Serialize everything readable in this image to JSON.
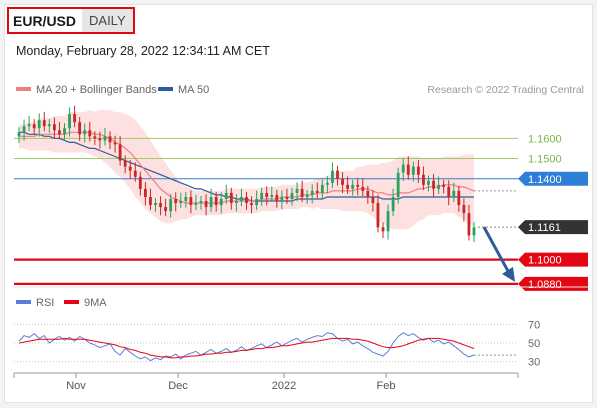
{
  "header": {
    "symbol": "EUR/USD",
    "period": "DAILY"
  },
  "timestamp": "Monday, February 28, 2022 12:34:11 AM CET",
  "credit": "Research © 2022 Trading Central",
  "colors": {
    "ma20": "#f08080",
    "bollinger_fill": "#fde0e0",
    "ma50": "#2e5c9a",
    "resistance": "#9bcc66",
    "pivot": "#2e7fd6",
    "support": "#e30613",
    "candle_up": "#27a35f",
    "candle_down": "#c62828",
    "rsi": "#5b7fd6",
    "rsi_ma": "#e30613",
    "arrow": "#2e5c9a"
  },
  "chart_data": [
    {
      "type": "line",
      "legend": [
        {
          "name": "MA 20 + Bollinger Bands",
          "color": "#f08080"
        },
        {
          "name": "MA 50",
          "color": "#2e5c9a"
        }
      ],
      "x_ticks": [
        "Nov",
        "Dec",
        "2022",
        "Feb"
      ],
      "ylim": [
        1.084,
        1.175
      ],
      "levels": [
        {
          "value": 1.16,
          "label": "1.1600",
          "role": "resistance"
        },
        {
          "value": 1.15,
          "label": "1.1500",
          "role": "resistance"
        },
        {
          "value": 1.14,
          "label": "1.1400",
          "role": "pivot"
        },
        {
          "value": 1.1161,
          "label": "1.1161",
          "role": "last"
        },
        {
          "value": 1.1,
          "label": "1.1000",
          "role": "support"
        },
        {
          "value": 1.088,
          "label": "1.0880",
          "role": "support"
        }
      ],
      "close_series": [
        1.163,
        1.166,
        1.167,
        1.165,
        1.169,
        1.166,
        1.167,
        1.164,
        1.162,
        1.165,
        1.172,
        1.168,
        1.162,
        1.164,
        1.161,
        1.16,
        1.159,
        1.161,
        1.158,
        1.157,
        1.149,
        1.146,
        1.144,
        1.141,
        1.135,
        1.131,
        1.127,
        1.128,
        1.126,
        1.124,
        1.13,
        1.128,
        1.129,
        1.131,
        1.127,
        1.128,
        1.129,
        1.126,
        1.131,
        1.127,
        1.13,
        1.133,
        1.128,
        1.129,
        1.131,
        1.128,
        1.127,
        1.13,
        1.133,
        1.131,
        1.132,
        1.129,
        1.131,
        1.13,
        1.133,
        1.135,
        1.131,
        1.132,
        1.134,
        1.133,
        1.137,
        1.138,
        1.144,
        1.14,
        1.137,
        1.135,
        1.137,
        1.136,
        1.134,
        1.131,
        1.128,
        1.116,
        1.114,
        1.124,
        1.131,
        1.143,
        1.147,
        1.142,
        1.146,
        1.142,
        1.137,
        1.139,
        1.135,
        1.137,
        1.136,
        1.131,
        1.134,
        1.127,
        1.123,
        1.112,
        1.116
      ],
      "ma20_series": [
        1.161,
        1.161,
        1.161,
        1.161,
        1.162,
        1.162,
        1.162,
        1.162,
        1.162,
        1.162,
        1.163,
        1.163,
        1.163,
        1.163,
        1.163,
        1.162,
        1.162,
        1.161,
        1.16,
        1.158,
        1.157,
        1.155,
        1.153,
        1.15,
        1.147,
        1.144,
        1.141,
        1.138,
        1.135,
        1.133,
        1.131,
        1.13,
        1.129,
        1.128,
        1.128,
        1.128,
        1.128,
        1.128,
        1.128,
        1.128,
        1.128,
        1.129,
        1.129,
        1.129,
        1.129,
        1.129,
        1.129,
        1.129,
        1.13,
        1.13,
        1.13,
        1.13,
        1.131,
        1.131,
        1.131,
        1.131,
        1.132,
        1.132,
        1.132,
        1.133,
        1.133,
        1.133,
        1.134,
        1.134,
        1.134,
        1.134,
        1.134,
        1.135,
        1.135,
        1.135,
        1.134,
        1.133,
        1.133,
        1.132,
        1.132,
        1.133,
        1.133,
        1.133,
        1.134,
        1.135,
        1.135,
        1.136,
        1.136,
        1.136,
        1.137,
        1.137,
        1.137,
        1.136,
        1.136,
        1.135,
        1.134
      ],
      "ma50_series": [
        1.163,
        1.163,
        1.162,
        1.162,
        1.162,
        1.161,
        1.161,
        1.16,
        1.16,
        1.159,
        1.158,
        1.158,
        1.157,
        1.156,
        1.155,
        1.155,
        1.154,
        1.153,
        1.152,
        1.151,
        1.15,
        1.149,
        1.148,
        1.147,
        1.146,
        1.145,
        1.144,
        1.143,
        1.142,
        1.141,
        1.14,
        1.139,
        1.138,
        1.137,
        1.136,
        1.135,
        1.135,
        1.134,
        1.133,
        1.132,
        1.132,
        1.131,
        1.131,
        1.13,
        1.13,
        1.13,
        1.129,
        1.129,
        1.129,
        1.129,
        1.129,
        1.129,
        1.129,
        1.129,
        1.129,
        1.13,
        1.13,
        1.13,
        1.13,
        1.13,
        1.13,
        1.131,
        1.131,
        1.131,
        1.131,
        1.131,
        1.131,
        1.131,
        1.131,
        1.131,
        1.131,
        1.131,
        1.13,
        1.13,
        1.13,
        1.13,
        1.131,
        1.131,
        1.131,
        1.131,
        1.131,
        1.131,
        1.131,
        1.131,
        1.131,
        1.131,
        1.131,
        1.131,
        1.131,
        1.131,
        1.131
      ],
      "band_width": [
        0.006,
        0.006,
        0.007,
        0.007,
        0.008,
        0.008,
        0.008,
        0.009,
        0.009,
        0.009,
        0.01,
        0.01,
        0.01,
        0.01,
        0.011,
        0.011,
        0.012,
        0.013,
        0.014,
        0.015,
        0.016,
        0.017,
        0.018,
        0.019,
        0.019,
        0.019,
        0.018,
        0.017,
        0.016,
        0.015,
        0.013,
        0.011,
        0.009,
        0.008,
        0.007,
        0.006,
        0.006,
        0.006,
        0.006,
        0.006,
        0.006,
        0.006,
        0.006,
        0.006,
        0.006,
        0.006,
        0.006,
        0.006,
        0.006,
        0.006,
        0.006,
        0.006,
        0.006,
        0.006,
        0.006,
        0.006,
        0.006,
        0.006,
        0.007,
        0.007,
        0.008,
        0.008,
        0.009,
        0.009,
        0.01,
        0.01,
        0.01,
        0.011,
        0.011,
        0.012,
        0.013,
        0.014,
        0.015,
        0.016,
        0.017,
        0.018,
        0.018,
        0.018,
        0.017,
        0.016,
        0.015,
        0.014,
        0.014,
        0.014,
        0.014,
        0.014,
        0.014,
        0.015,
        0.016,
        0.017,
        0.018
      ]
    },
    {
      "type": "line",
      "legend": [
        {
          "name": "RSI",
          "color": "#5b7fd6"
        },
        {
          "name": "9MA",
          "color": "#e30613"
        }
      ],
      "ylim": [
        22,
        78
      ],
      "y_ticks": [
        70,
        50,
        30
      ],
      "rsi_series": [
        52,
        58,
        56,
        60,
        55,
        58,
        50,
        54,
        57,
        53,
        56,
        52,
        57,
        54,
        50,
        48,
        45,
        47,
        49,
        41,
        37,
        44,
        40,
        36,
        33,
        35,
        31,
        34,
        32,
        36,
        35,
        38,
        33,
        37,
        39,
        41,
        37,
        40,
        43,
        39,
        41,
        44,
        40,
        42,
        46,
        42,
        44,
        47,
        49,
        45,
        48,
        51,
        47,
        50,
        53,
        55,
        51,
        54,
        56,
        58,
        57,
        61,
        60,
        55,
        52,
        54,
        49,
        51,
        47,
        44,
        40,
        38,
        36,
        41,
        50,
        57,
        61,
        58,
        60,
        56,
        53,
        55,
        51,
        53,
        49,
        51,
        47,
        43,
        38,
        35,
        37
      ],
      "rsi_ma_series": [
        50,
        51,
        52,
        53,
        54,
        54,
        54,
        54,
        54,
        55,
        54,
        54,
        54,
        54,
        53,
        52,
        51,
        50,
        49,
        48,
        46,
        45,
        43,
        42,
        40,
        39,
        37,
        36,
        35,
        35,
        34,
        34,
        35,
        35,
        36,
        36,
        37,
        38,
        38,
        39,
        39,
        40,
        40,
        41,
        42,
        42,
        43,
        44,
        44,
        45,
        45,
        46,
        47,
        47,
        48,
        49,
        50,
        51,
        51,
        52,
        53,
        54,
        55,
        55,
        55,
        55,
        54,
        54,
        53,
        52,
        50,
        48,
        46,
        45,
        45,
        46,
        47,
        49,
        51,
        53,
        54,
        55,
        55,
        55,
        54,
        53,
        52,
        50,
        48,
        46,
        44
      ]
    }
  ]
}
